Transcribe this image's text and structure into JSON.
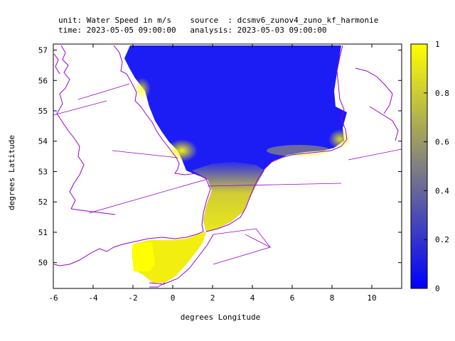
{
  "header": {
    "line1": "unit: Water Speed in m/s    source  : dcsmv6_zunov4_zuno_kf_harmonie",
    "line2": "time: 2023-05-05 09:00:00   analysis: 2023-05-03 09:00:00"
  },
  "axes": {
    "xlabel": "degrees Longitude",
    "ylabel": "degrees Latitude",
    "xticks": [
      "-6",
      "-4",
      "-2",
      "0",
      "2",
      "4",
      "6",
      "8",
      "10"
    ],
    "yticks": [
      "50",
      "51",
      "52",
      "53",
      "54",
      "55",
      "56",
      "57"
    ],
    "xlim": [
      -6,
      11.5
    ],
    "ylim": [
      49.15,
      57.2
    ]
  },
  "colorbar": {
    "ticks": [
      "0",
      "0.2",
      "0.4",
      "0.6",
      "0.8",
      "1"
    ],
    "range": [
      0,
      1
    ],
    "low_color": "#0000ff",
    "mid_color": "#808080",
    "high_color": "#ffff00"
  },
  "colors": {
    "coastline": "#9900cc",
    "sea_low": "#1a1aff",
    "sea_high": "#ffff00"
  }
}
